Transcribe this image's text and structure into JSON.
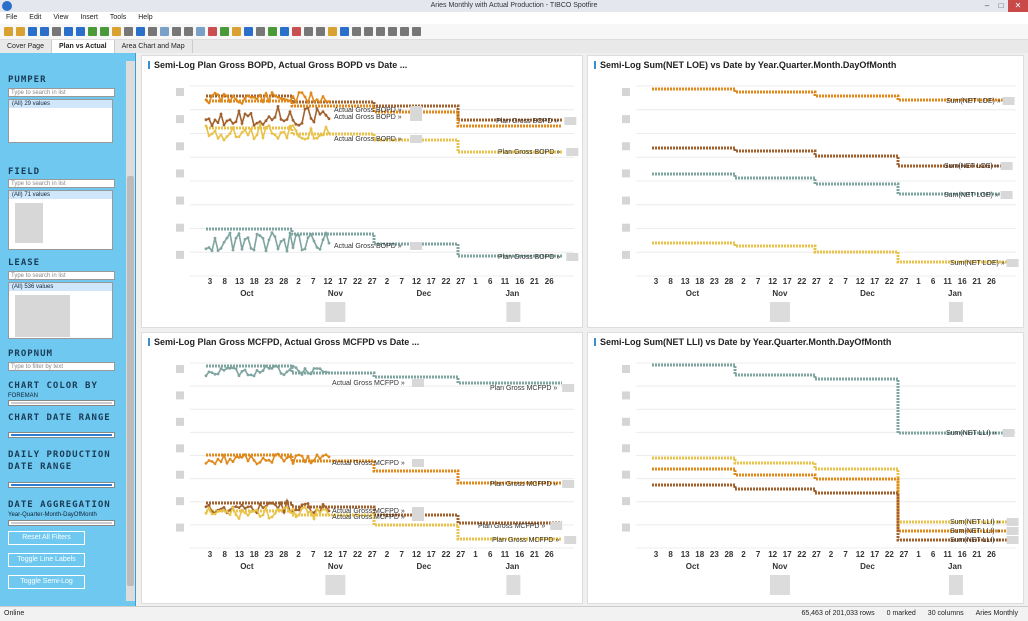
{
  "window": {
    "title": "Aries Monthly with Actual Production - TIBCO Spotfire"
  },
  "menu": [
    "File",
    "Edit",
    "View",
    "Insert",
    "Tools",
    "Help"
  ],
  "tabs": [
    {
      "label": "Cover Page"
    },
    {
      "label": "Plan vs Actual"
    },
    {
      "label": "Area Chart and Map"
    }
  ],
  "sidebar": {
    "pumper": {
      "title": "PUMPER",
      "search": "Type to search in list",
      "all": "(All) 29 values"
    },
    "field": {
      "title": "FIELD",
      "search": "Type to search in list",
      "all": "(All) 71 values"
    },
    "lease": {
      "title": "LEASE",
      "search": "Type to search in list",
      "all": "(All) 536 values"
    },
    "propnum": {
      "title": "PROPNUM",
      "search": "Type to filter by text"
    },
    "chart_color": {
      "title": "CHART COLOR BY",
      "value": "FOREMAN"
    },
    "chart_date": {
      "title": "CHART DATE RANGE"
    },
    "daily_prod": {
      "title1": "DAILY PRODUCTION",
      "title2": "DATE RANGE"
    },
    "date_agg": {
      "title": "DATE AGGREGATION",
      "value": "Year-Quarter-Month-DayOfMonth"
    },
    "buttons": {
      "reset": "Reset All Filters",
      "labels": "Toggle Line Labels",
      "semilog": "Toggle Semi-Log"
    }
  },
  "panels": {
    "p1": {
      "title": "Semi-Log Plan Gross BOPD, Actual Gross BOPD vs Date ..."
    },
    "p2": {
      "title": "Semi-Log Sum(NET LOE) vs Date by Year.Quarter.Month.DayOfMonth"
    },
    "p3": {
      "title": "Semi-Log Plan Gross MCFPD, Actual Gross MCFPD vs Date ..."
    },
    "p4": {
      "title": "Semi-Log Sum(NET LLI) vs Date by Year.Quarter.Month.DayOfMonth"
    }
  },
  "axis": {
    "days": [
      "3",
      "8",
      "13",
      "18",
      "23",
      "28",
      "2",
      "7",
      "12",
      "17",
      "22",
      "27",
      "2",
      "7",
      "12",
      "17",
      "22",
      "27",
      "1",
      "6",
      "11",
      "16",
      "21",
      "26"
    ],
    "days_short": [
      "3",
      "8",
      "13",
      "18",
      "23",
      "28",
      "2",
      "7",
      "12",
      "17",
      "22",
      "27",
      "2",
      "7",
      "12",
      "17",
      "22",
      "27",
      "1",
      "6",
      "11",
      "16",
      "21",
      "26"
    ],
    "months": [
      "Oct",
      "Nov",
      "Dec",
      "Jan"
    ]
  },
  "labels": {
    "actual_bopd": "Actual Gross BOPD »",
    "plan_bopd": "Plan Gross BOPD »",
    "actual_mcfpd": "Actual Gross MCFPD »",
    "plan_mcfpd": "Plan Gross MCFPD »",
    "loe": "Sum(NET LOE) »",
    "lli": "Sum(NET LLI) »"
  },
  "colors": {
    "orange": "#e08a1e",
    "brown": "#a0612e",
    "gold": "#e8c24a",
    "teal": "#7fa5a0"
  },
  "status": {
    "left": "Online",
    "rows": "65,463 of 201,033 rows",
    "marked": "0 marked",
    "columns": "30 columns",
    "file": "Aries Monthly"
  }
}
